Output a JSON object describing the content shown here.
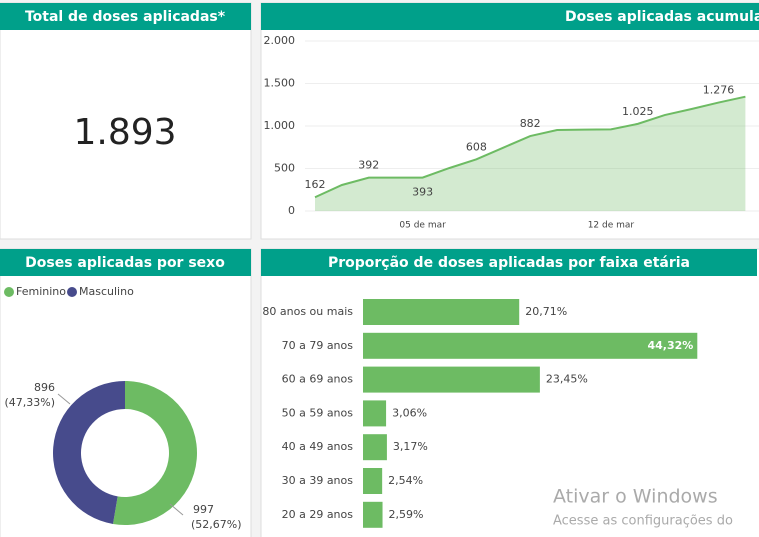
{
  "kpi": {
    "title": "Total de doses aplicadas*",
    "value": "1.893"
  },
  "chart_data": [
    {
      "type": "line",
      "title": "Doses aplicadas acumuladas",
      "categories": [
        null,
        null,
        null,
        null,
        "05 de mar",
        null,
        null,
        null,
        null,
        null,
        null,
        "12 de mar",
        null,
        null,
        null,
        null,
        null
      ],
      "values": [
        162,
        306,
        392,
        392,
        393,
        506,
        608,
        745,
        882,
        953,
        958,
        960,
        1025,
        1129,
        1200,
        1276,
        1345
      ],
      "value_labels": [
        "162",
        null,
        "392",
        null,
        "393",
        null,
        "608",
        null,
        "882",
        null,
        null,
        null,
        "1.025",
        null,
        null,
        "1.276",
        null
      ],
      "color": "#6dbb63",
      "ylim": [
        0,
        2000
      ],
      "yticks": [
        0,
        500,
        {
          "value": 1000,
          "label": "1.000"
        },
        {
          "value": 1500,
          "label": "1.500"
        },
        {
          "value": 2000,
          "label": "2.000"
        }
      ],
      "grid": true
    },
    {
      "type": "donut",
      "title": "Doses aplicadas por sexo",
      "categories": [
        "Feminino",
        "Masculino"
      ],
      "values": [
        997,
        896
      ],
      "percent_labels": [
        "(52,67%)",
        "(47,33%)"
      ],
      "colors": [
        "#6dbb63",
        "#474b8c"
      ]
    },
    {
      "type": "hbar",
      "title": "Proporção de doses aplicadas por faixa etária",
      "categories": [
        "80 anos ou mais",
        "70 a 79 anos",
        "60 a 69 anos",
        "50 a 59 anos",
        "40 a 49 anos",
        "30 a 39 anos",
        "20 a 29 anos"
      ],
      "values": [
        20.71,
        44.32,
        23.45,
        3.06,
        3.17,
        2.54,
        2.59
      ],
      "value_labels": [
        "20,71%",
        "44,32%",
        "23,45%",
        "3,06%",
        "3,17%",
        "2,54%",
        "2,59%"
      ],
      "color": "#6dbb63",
      "xlim": [
        0,
        52.5
      ]
    }
  ],
  "watermark": {
    "title": "Ativar o Windows",
    "subtitle": "Acesse as configurações do"
  }
}
